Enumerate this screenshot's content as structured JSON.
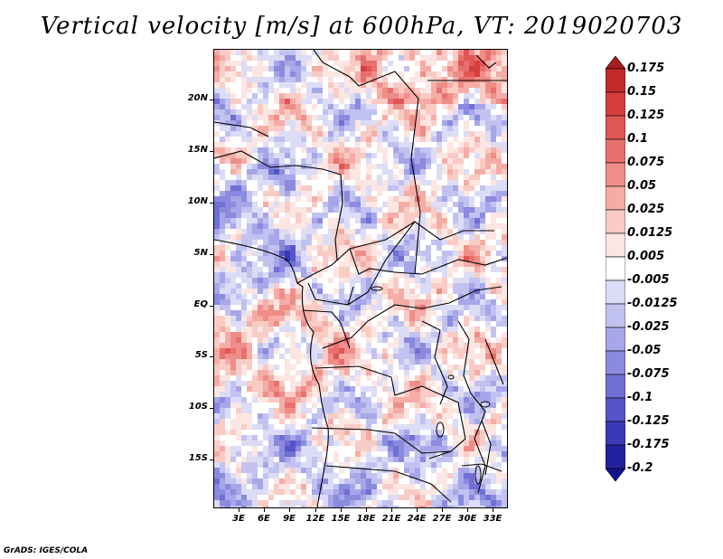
{
  "title": "Vertical velocity [m/s] at 600hPa, VT: 2019020703",
  "variable": "Vertical velocity",
  "units": "m/s",
  "level": "600hPa",
  "valid_time": "2019020703",
  "lat_labels": [
    "20N",
    "15N",
    "10N",
    "5N",
    "EQ",
    "5S",
    "10S",
    "15S"
  ],
  "lon_labels": [
    "3E",
    "6E",
    "9E",
    "12E",
    "15E",
    "18E",
    "21E",
    "24E",
    "27E",
    "30E",
    "33E"
  ],
  "colorbar": {
    "labels": [
      "0.175",
      "0.15",
      "0.125",
      "0.1",
      "0.075",
      "0.05",
      "0.025",
      "0.0125",
      "0.005",
      "-0.005",
      "-0.0125",
      "-0.025",
      "-0.05",
      "-0.075",
      "-0.1",
      "-0.125",
      "-0.175",
      "-0.2"
    ],
    "colors": [
      "#a81c1c",
      "#c22a2a",
      "#d63e3e",
      "#e05555",
      "#e8706c",
      "#ef8d88",
      "#f5aca6",
      "#f9cbc5",
      "#fce6e2",
      "#ffffff",
      "#dcdcf6",
      "#c2c2f0",
      "#a6a6e8",
      "#8a8ade",
      "#6f6fd4",
      "#5555c8",
      "#3a3ab6",
      "#2222a0",
      "#13138a"
    ]
  },
  "credit": "GrADS: IGES/COLA"
}
